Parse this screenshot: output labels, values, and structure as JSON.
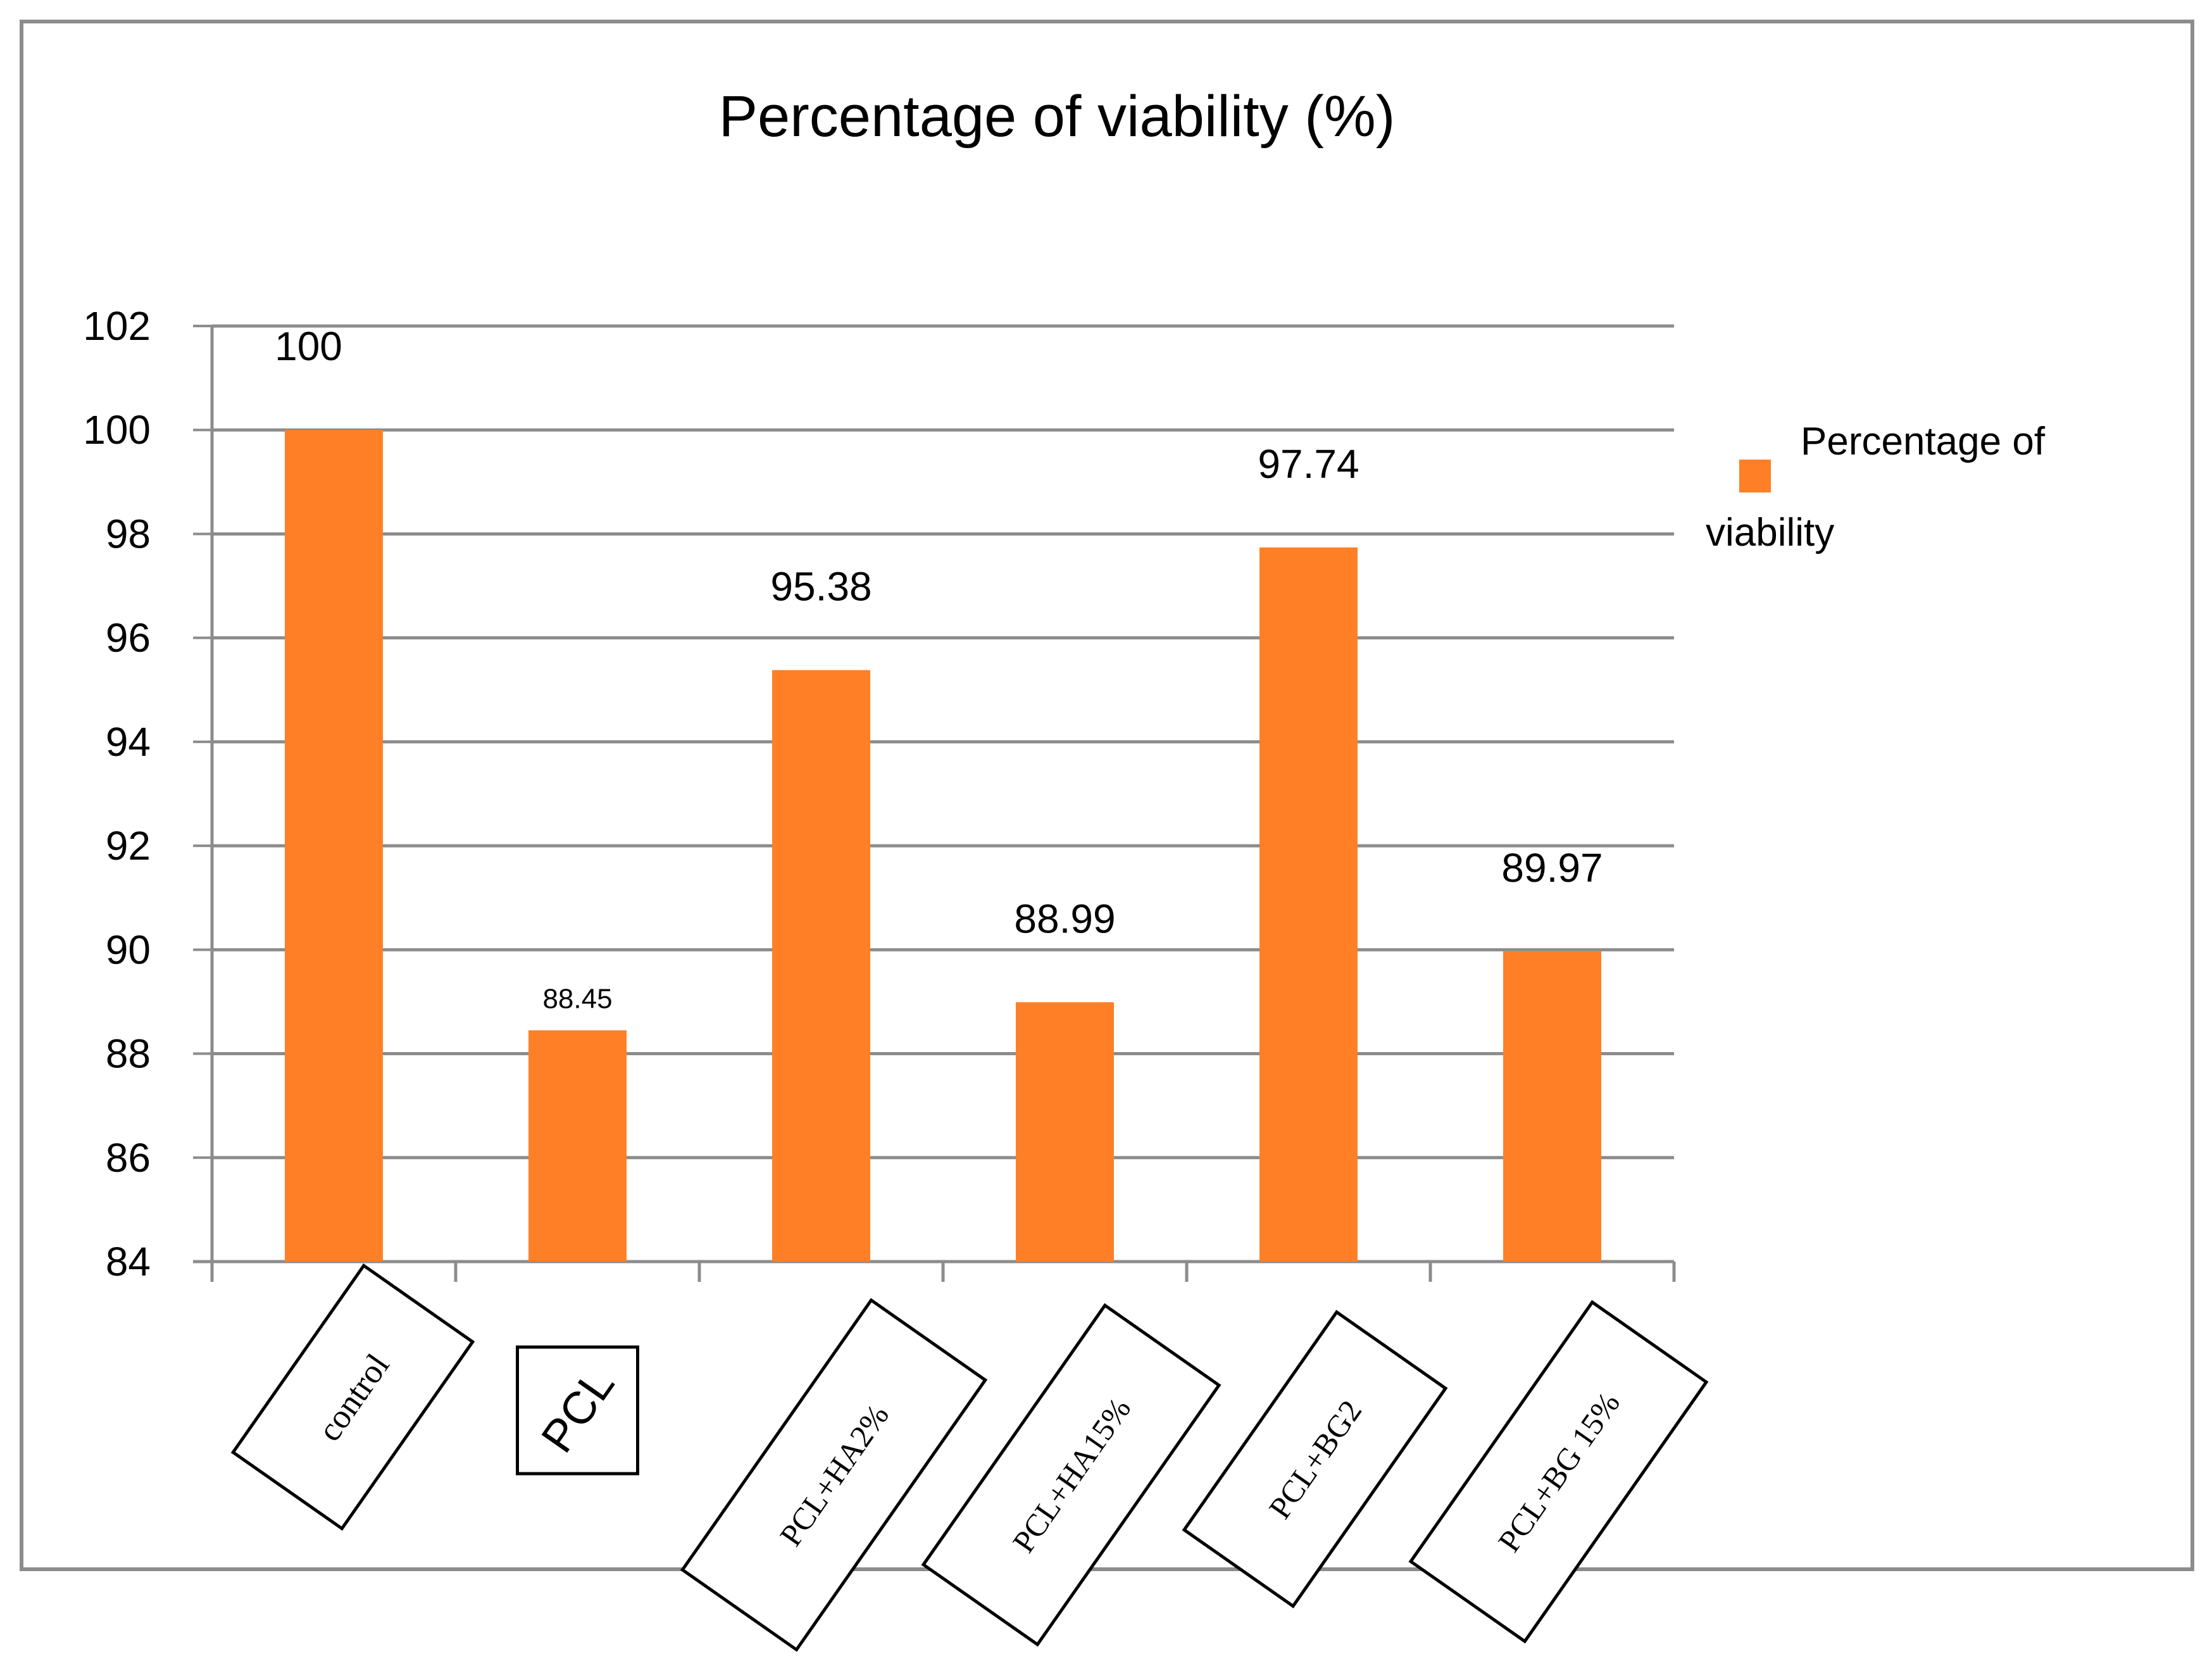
{
  "chart_data": {
    "type": "bar",
    "title": "Percentage of viability (%)",
    "xlabel": "",
    "ylabel": "",
    "categories": [
      "control",
      "PCL",
      "PCL+HA2%",
      "PCL+HA15%",
      "PCL+BG2",
      "PCL+BG 15%"
    ],
    "series": [
      {
        "name": "Percentage of viability",
        "values": [
          100,
          88.45,
          95.38,
          88.99,
          97.74,
          89.97
        ]
      }
    ],
    "data_labels": [
      "100",
      "88.45",
      "95.38",
      "88.99",
      "97.74",
      "89.97"
    ],
    "ylim": [
      84,
      102
    ],
    "yticks": [
      84,
      86,
      88,
      90,
      92,
      94,
      96,
      98,
      100,
      102
    ],
    "grid": true,
    "legend": {
      "position": "right",
      "line1": "Percentage of",
      "line2": "viability"
    }
  },
  "colors": {
    "bar": "#FF7F27",
    "grid": "#8C8C8C",
    "axis": "#8C8C8C",
    "frame": "#8C8C8C",
    "text": "#000000",
    "background": "#FFFFFF"
  }
}
